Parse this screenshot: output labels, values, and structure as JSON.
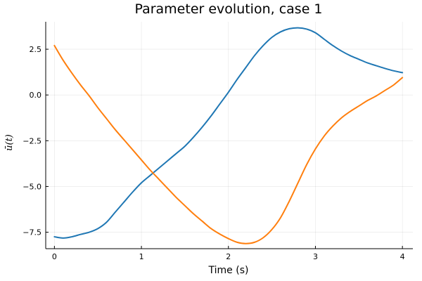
{
  "chart_data": {
    "type": "line",
    "title": "Parameter evolution, case 1",
    "xlabel": "Time (s)",
    "ylabel": "ū(t)",
    "xlim": [
      -0.1,
      4.12
    ],
    "ylim": [
      -8.4,
      4.0
    ],
    "xticks": [
      0,
      1,
      2,
      3,
      4
    ],
    "xtick_labels": [
      "0",
      "1",
      "2",
      "3",
      "4"
    ],
    "yticks": [
      2.5,
      0.0,
      -2.5,
      -5.0,
      -7.5
    ],
    "ytick_labels": [
      "2.5",
      "0.0",
      "−2.5",
      "−5.0",
      "−7.5"
    ],
    "grid": true,
    "legend": false,
    "colors": [
      "#1f77b4",
      "#ff7f0e"
    ],
    "series": [
      {
        "x": [
          0,
          0.1,
          0.2,
          0.3,
          0.4,
          0.5,
          0.6,
          0.7,
          0.8,
          0.9,
          1.0,
          1.1,
          1.2,
          1.3,
          1.4,
          1.5,
          1.6,
          1.7,
          1.8,
          1.9,
          2.0,
          2.1,
          2.2,
          2.3,
          2.4,
          2.5,
          2.6,
          2.7,
          2.8,
          2.9,
          3.0,
          3.1,
          3.2,
          3.3,
          3.4,
          3.5,
          3.6,
          3.7,
          3.8,
          3.9,
          4.0
        ],
        "values": [
          -7.75,
          -7.82,
          -7.75,
          -7.62,
          -7.5,
          -7.3,
          -6.95,
          -6.4,
          -5.85,
          -5.3,
          -4.8,
          -4.4,
          -4.0,
          -3.6,
          -3.2,
          -2.8,
          -2.3,
          -1.75,
          -1.15,
          -0.5,
          0.15,
          0.85,
          1.5,
          2.15,
          2.7,
          3.15,
          3.45,
          3.62,
          3.67,
          3.6,
          3.4,
          3.05,
          2.7,
          2.4,
          2.15,
          1.95,
          1.75,
          1.6,
          1.45,
          1.32,
          1.22
        ]
      },
      {
        "x": [
          0,
          0.1,
          0.2,
          0.3,
          0.4,
          0.5,
          0.6,
          0.7,
          0.8,
          0.9,
          1.0,
          1.1,
          1.2,
          1.3,
          1.4,
          1.5,
          1.6,
          1.7,
          1.8,
          1.9,
          2.0,
          2.1,
          2.2,
          2.3,
          2.4,
          2.5,
          2.6,
          2.7,
          2.8,
          2.9,
          3.0,
          3.1,
          3.2,
          3.3,
          3.4,
          3.5,
          3.6,
          3.7,
          3.8,
          3.9,
          4.0
        ],
        "values": [
          2.7,
          1.9,
          1.2,
          0.55,
          -0.05,
          -0.7,
          -1.3,
          -1.9,
          -2.45,
          -3.0,
          -3.55,
          -4.1,
          -4.6,
          -5.1,
          -5.6,
          -6.05,
          -6.5,
          -6.9,
          -7.3,
          -7.6,
          -7.85,
          -8.05,
          -8.12,
          -8.05,
          -7.8,
          -7.35,
          -6.7,
          -5.8,
          -4.8,
          -3.8,
          -2.95,
          -2.25,
          -1.7,
          -1.25,
          -0.9,
          -0.6,
          -0.3,
          -0.05,
          0.25,
          0.55,
          0.95
        ]
      }
    ]
  }
}
